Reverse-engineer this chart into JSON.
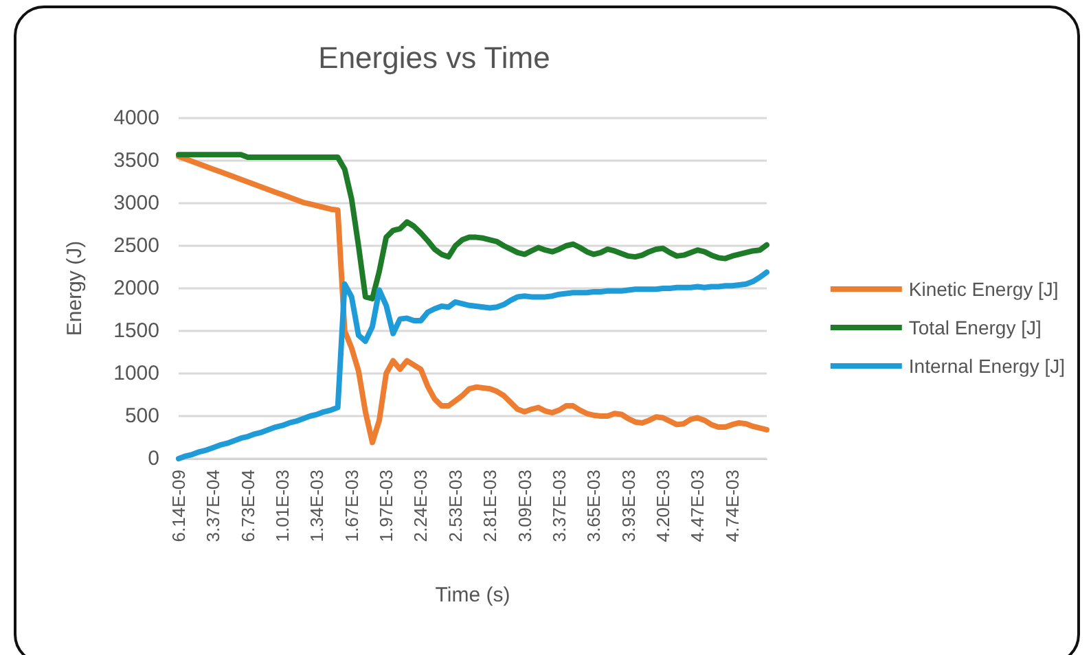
{
  "chart_data": {
    "type": "line",
    "title": "Energies vs Time",
    "xlabel": "Time (s)",
    "ylabel": "Energy (J)",
    "categories": [
      "6.14E-09",
      null,
      null,
      null,
      null,
      "3.37E-04",
      null,
      null,
      null,
      null,
      "6.73E-04",
      null,
      null,
      null,
      null,
      "1.01E-03",
      null,
      null,
      null,
      null,
      "1.34E-03",
      null,
      null,
      null,
      null,
      "1.67E-03",
      null,
      null,
      null,
      null,
      "1.97E-03",
      null,
      null,
      null,
      null,
      "2.24E-03",
      null,
      null,
      null,
      null,
      "2.53E-03",
      null,
      null,
      null,
      null,
      "2.81E-03",
      null,
      null,
      null,
      null,
      "3.09E-03",
      null,
      null,
      null,
      null,
      "3.37E-03",
      null,
      null,
      null,
      null,
      "3.65E-03",
      null,
      null,
      null,
      null,
      "3.93E-03",
      null,
      null,
      null,
      null,
      "4.20E-03",
      null,
      null,
      null,
      null,
      "4.47E-03",
      null,
      null,
      null,
      null,
      "4.74E-03",
      null,
      null,
      null,
      null,
      null
    ],
    "series": [
      {
        "name": "Kinetic Energy [J]",
        "color": "#ed7d31",
        "values": [
          3550,
          3520,
          3490,
          3460,
          3430,
          3400,
          3370,
          3340,
          3310,
          3280,
          3250,
          3220,
          3190,
          3160,
          3130,
          3100,
          3070,
          3040,
          3010,
          2990,
          2970,
          2950,
          2930,
          2920,
          1500,
          1300,
          1030,
          550,
          190,
          450,
          1000,
          1150,
          1050,
          1150,
          1100,
          1050,
          850,
          700,
          620,
          620,
          680,
          740,
          820,
          840,
          830,
          820,
          790,
          740,
          660,
          580,
          550,
          580,
          600,
          560,
          540,
          570,
          620,
          620,
          570,
          530,
          510,
          500,
          500,
          530,
          520,
          470,
          430,
          420,
          450,
          490,
          480,
          440,
          400,
          410,
          460,
          480,
          450,
          400,
          370,
          370,
          400,
          420,
          410,
          380,
          360,
          340
        ]
      },
      {
        "name": "Total Energy [J]",
        "color": "#1e7b28",
        "values": [
          3570,
          3570,
          3570,
          3570,
          3570,
          3570,
          3570,
          3570,
          3570,
          3570,
          3540,
          3540,
          3540,
          3540,
          3540,
          3540,
          3540,
          3540,
          3540,
          3540,
          3540,
          3540,
          3540,
          3540,
          3400,
          3050,
          2500,
          1900,
          1880,
          2200,
          2600,
          2680,
          2700,
          2780,
          2730,
          2650,
          2560,
          2460,
          2400,
          2370,
          2500,
          2570,
          2600,
          2600,
          2590,
          2570,
          2550,
          2500,
          2460,
          2420,
          2400,
          2440,
          2480,
          2450,
          2430,
          2460,
          2500,
          2520,
          2480,
          2430,
          2400,
          2420,
          2460,
          2440,
          2410,
          2380,
          2370,
          2390,
          2430,
          2460,
          2470,
          2420,
          2380,
          2390,
          2420,
          2450,
          2430,
          2390,
          2360,
          2350,
          2380,
          2400,
          2420,
          2440,
          2450,
          2510
        ]
      },
      {
        "name": "Internal Energy [J]",
        "color": "#1f9bd7",
        "values": [
          0,
          30,
          50,
          80,
          100,
          130,
          160,
          180,
          210,
          240,
          260,
          290,
          310,
          340,
          370,
          390,
          420,
          440,
          470,
          500,
          520,
          550,
          570,
          600,
          2050,
          1900,
          1450,
          1380,
          1550,
          1980,
          1800,
          1470,
          1640,
          1650,
          1620,
          1620,
          1720,
          1760,
          1790,
          1780,
          1840,
          1820,
          1800,
          1790,
          1780,
          1770,
          1780,
          1810,
          1860,
          1900,
          1910,
          1900,
          1900,
          1900,
          1910,
          1930,
          1940,
          1950,
          1950,
          1950,
          1960,
          1960,
          1970,
          1970,
          1970,
          1980,
          1990,
          1990,
          1990,
          1990,
          2000,
          2000,
          2010,
          2010,
          2010,
          2020,
          2010,
          2020,
          2020,
          2030,
          2030,
          2040,
          2050,
          2080,
          2130,
          2190
        ]
      }
    ],
    "ylim": [
      0,
      4000
    ],
    "yticks": [
      0,
      500,
      1000,
      1500,
      2000,
      2500,
      3000,
      3500,
      4000
    ],
    "grid": "y",
    "legend": "right",
    "marker": "none",
    "line_style": "solid"
  }
}
